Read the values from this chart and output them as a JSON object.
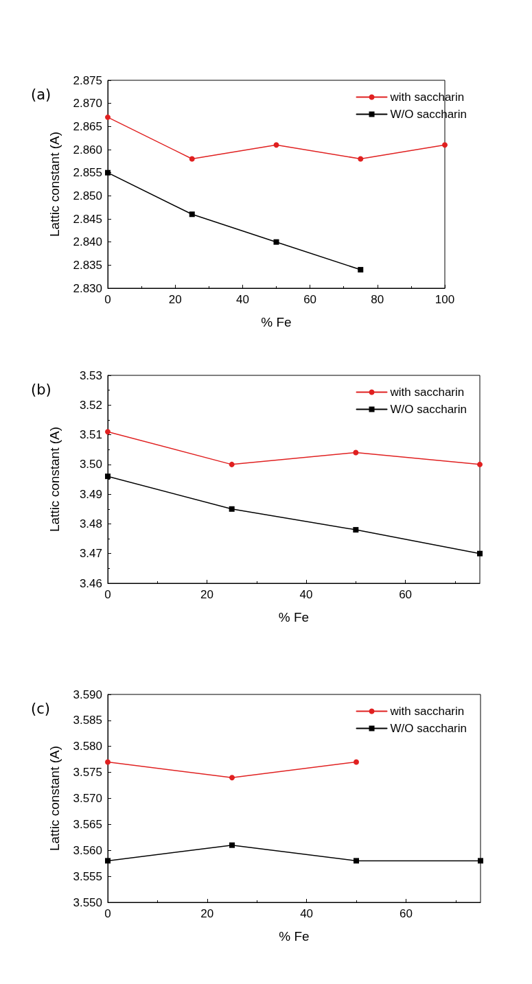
{
  "chart_data": [
    {
      "type": "line",
      "title": "(a)",
      "xlabel": "% Fe",
      "ylabel": "Lattic constant (A)",
      "x": [
        0,
        25,
        50,
        75,
        100
      ],
      "series": [
        {
          "name": "with saccharin",
          "color": "#e02020",
          "marker": "circle",
          "values": [
            2.867,
            2.858,
            2.861,
            2.858,
            2.861
          ]
        },
        {
          "name": "W/O saccharin",
          "color": "#000000",
          "marker": "square",
          "values": [
            2.855,
            2.846,
            2.84,
            2.834,
            null
          ]
        }
      ],
      "xlim": [
        0,
        100
      ],
      "xticks": [
        0,
        20,
        40,
        60,
        80,
        100
      ],
      "ylim": [
        2.83,
        2.875
      ],
      "yticks": [
        {
          "value": 2.83,
          "label": "2.830"
        },
        {
          "value": 2.835,
          "label": "2.835"
        },
        {
          "value": 2.84,
          "label": "2.840"
        },
        {
          "value": 2.845,
          "label": "2.845"
        },
        {
          "value": 2.85,
          "label": "2.850"
        },
        {
          "value": 2.855,
          "label": "2.855"
        },
        {
          "value": 2.86,
          "label": "2.860"
        },
        {
          "value": 2.865,
          "label": "2.865"
        },
        {
          "value": 2.87,
          "label": "2.870"
        },
        {
          "value": 2.875,
          "label": "2.875"
        }
      ],
      "grid": false,
      "legend": "top right"
    },
    {
      "type": "line",
      "title": "(b)",
      "xlabel": "% Fe",
      "ylabel": "Lattic constant (A)",
      "x": [
        0,
        25,
        50,
        75
      ],
      "series": [
        {
          "name": "with saccharin",
          "color": "#e02020",
          "marker": "circle",
          "values": [
            3.511,
            3.5,
            3.504,
            3.5
          ]
        },
        {
          "name": "W/O saccharin",
          "color": "#000000",
          "marker": "square",
          "values": [
            3.496,
            3.485,
            3.478,
            3.47
          ]
        }
      ],
      "xlim": [
        0,
        75
      ],
      "xticks": [
        0,
        20,
        40,
        60
      ],
      "ylim": [
        3.46,
        3.53
      ],
      "yticks": [
        {
          "value": 3.46,
          "label": "3.46"
        },
        {
          "value": 3.47,
          "label": "3.47"
        },
        {
          "value": 3.48,
          "label": "3.48"
        },
        {
          "value": 3.49,
          "label": "3.49"
        },
        {
          "value": 3.5,
          "label": "3.50"
        },
        {
          "value": 3.51,
          "label": "3.51"
        },
        {
          "value": 3.52,
          "label": "3.52"
        },
        {
          "value": 3.53,
          "label": "3.53"
        }
      ],
      "grid": false,
      "legend": "top right"
    },
    {
      "type": "line",
      "title": "(c)",
      "xlabel": "% Fe",
      "ylabel": "Lattic constant (A)",
      "x": [
        0,
        25,
        50,
        75
      ],
      "series": [
        {
          "name": "with saccharin",
          "color": "#e02020",
          "marker": "circle",
          "values": [
            3.577,
            3.574,
            3.577,
            null
          ]
        },
        {
          "name": "W/O saccharin",
          "color": "#000000",
          "marker": "square",
          "values": [
            3.558,
            3.561,
            3.558,
            3.558
          ]
        }
      ],
      "xlim": [
        0,
        75
      ],
      "xticks": [
        0,
        20,
        40,
        60
      ],
      "ylim": [
        3.55,
        3.59
      ],
      "yticks": [
        {
          "value": 3.55,
          "label": "3.550"
        },
        {
          "value": 3.555,
          "label": "3.555"
        },
        {
          "value": 3.56,
          "label": "3.560"
        },
        {
          "value": 3.565,
          "label": "3.565"
        },
        {
          "value": 3.57,
          "label": "3.570"
        },
        {
          "value": 3.575,
          "label": "3.575"
        },
        {
          "value": 3.58,
          "label": "3.580"
        },
        {
          "value": 3.585,
          "label": "3.585"
        },
        {
          "value": 3.59,
          "label": "3.590"
        }
      ],
      "grid": false,
      "legend": "top right"
    }
  ]
}
